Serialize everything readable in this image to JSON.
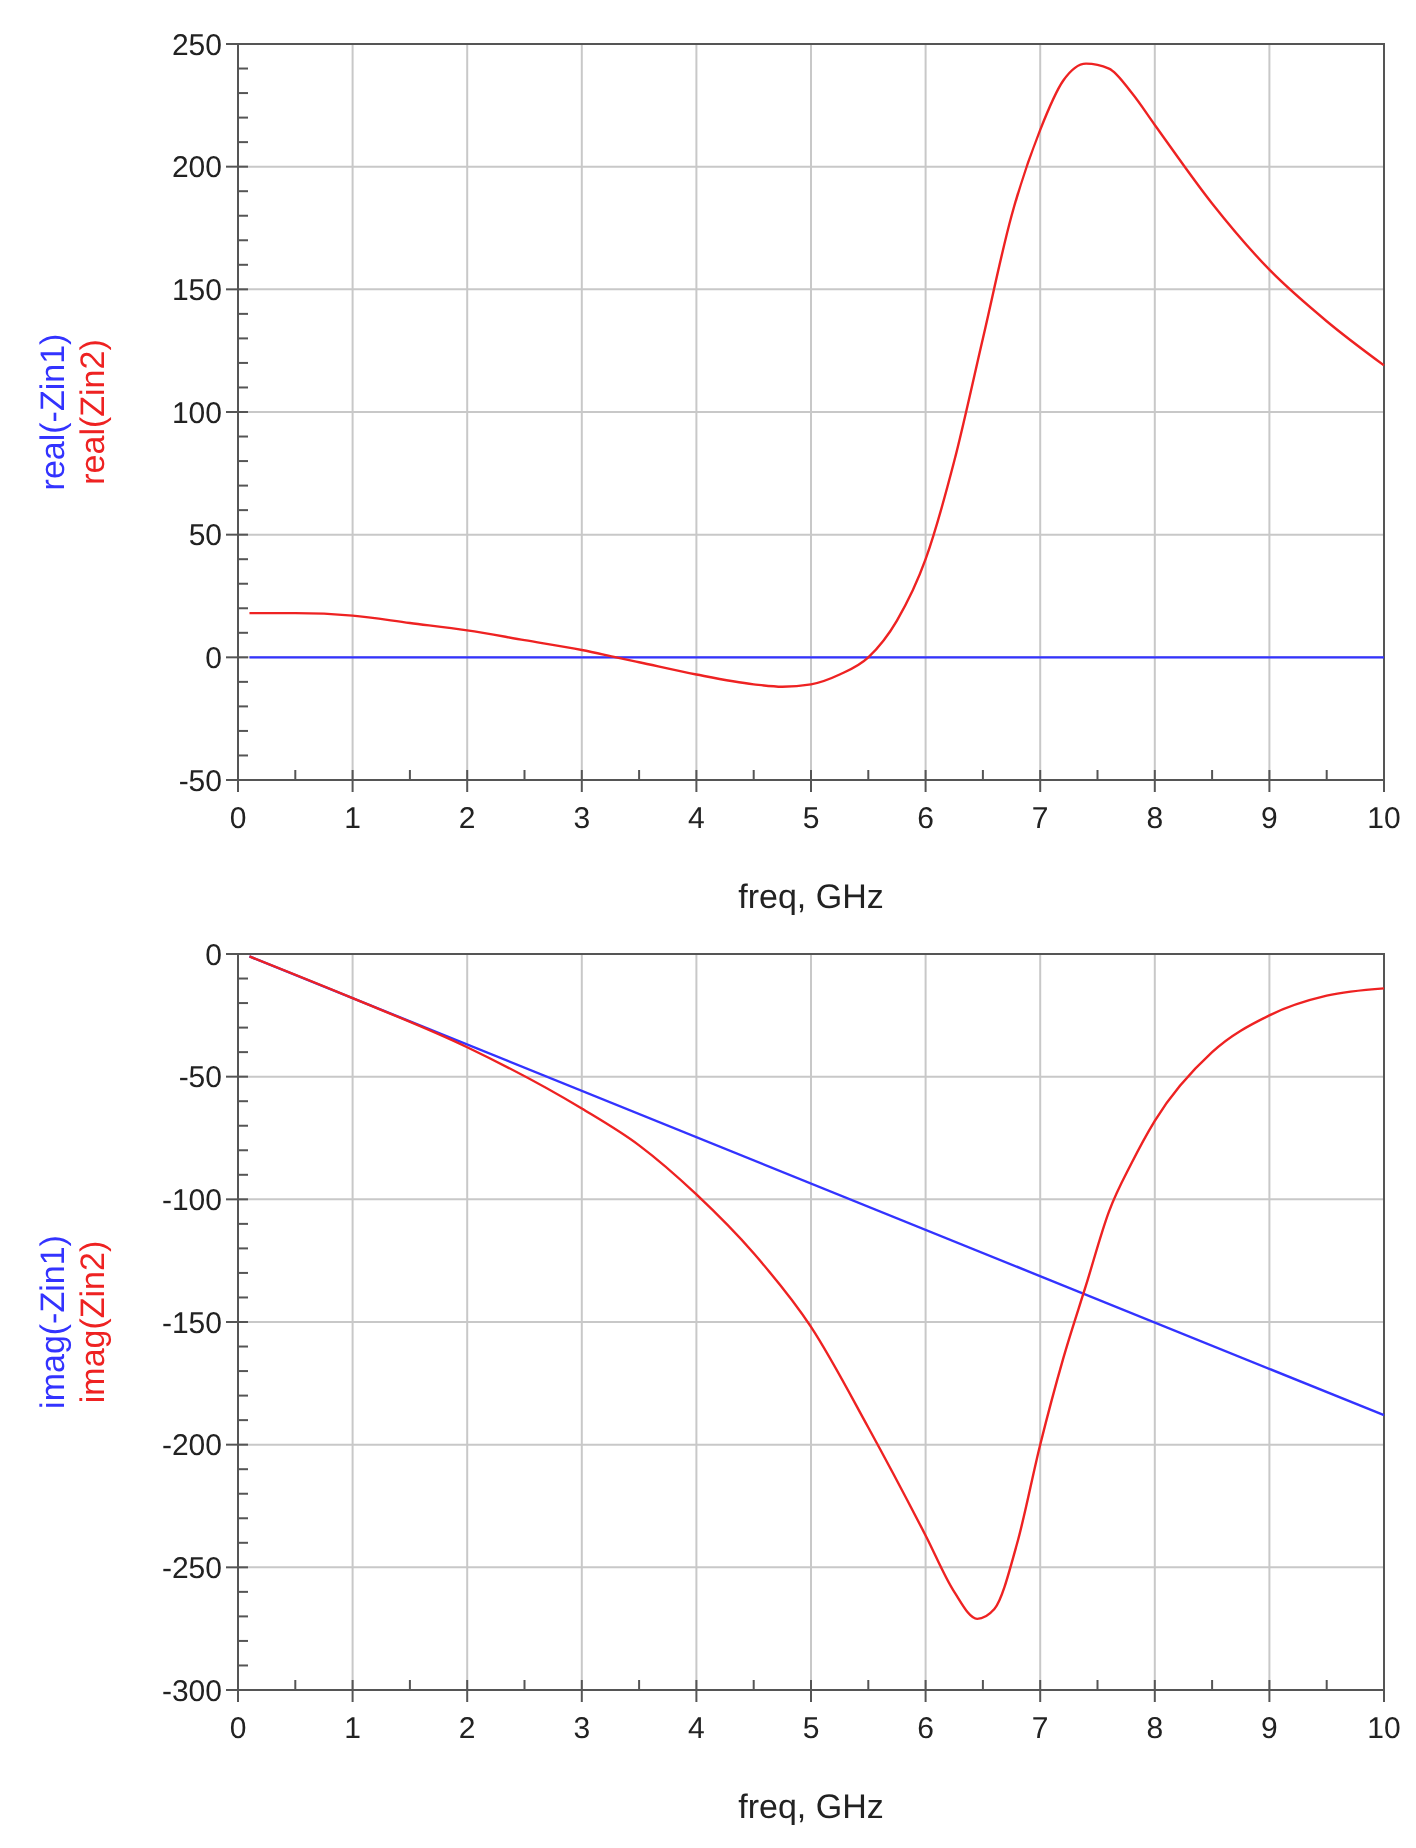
{
  "chart_data": [
    {
      "type": "line",
      "xlabel": "freq, GHz",
      "xlim": [
        0,
        10
      ],
      "xticks": [
        0,
        1,
        2,
        3,
        4,
        5,
        6,
        7,
        8,
        9,
        10
      ],
      "ylim": [
        -50,
        250
      ],
      "yticks": [
        -50,
        0,
        50,
        100,
        150,
        200,
        250
      ],
      "grid": true,
      "series": [
        {
          "name": "real(-Zin1)",
          "color": "#3333ff",
          "x": [
            0.1,
            2,
            4,
            6,
            8,
            10
          ],
          "values": [
            0,
            0,
            0,
            0,
            0,
            0
          ]
        },
        {
          "name": "real(Zin2)",
          "color": "#ee2222",
          "x": [
            0.1,
            0.5,
            1,
            1.5,
            2,
            2.5,
            3,
            3.3,
            3.5,
            4,
            4.5,
            4.75,
            5,
            5.25,
            5.5,
            5.75,
            6,
            6.25,
            6.5,
            6.75,
            7,
            7.2,
            7.4,
            7.6,
            7.8,
            8,
            8.5,
            9,
            9.5,
            10
          ],
          "values": [
            18,
            18,
            17,
            14,
            11,
            7,
            3,
            0,
            -2,
            -7,
            -11,
            -12,
            -11,
            -7,
            0,
            15,
            40,
            80,
            130,
            180,
            215,
            235,
            242,
            240,
            230,
            217,
            185,
            158,
            137,
            119
          ]
        }
      ]
    },
    {
      "type": "line",
      "xlabel": "freq, GHz",
      "xlim": [
        0,
        10
      ],
      "xticks": [
        0,
        1,
        2,
        3,
        4,
        5,
        6,
        7,
        8,
        9,
        10
      ],
      "ylim": [
        -300,
        0
      ],
      "yticks": [
        -300,
        -250,
        -200,
        -150,
        -100,
        -50,
        0
      ],
      "grid": true,
      "series": [
        {
          "name": "imag(-Zin1)",
          "color": "#3333ff",
          "x": [
            0.1,
            10
          ],
          "values": [
            -1,
            -188
          ]
        },
        {
          "name": "imag(Zin2)",
          "color": "#ee2222",
          "x": [
            0.1,
            1,
            2,
            3,
            3.5,
            4,
            4.5,
            5,
            5.5,
            6,
            6.25,
            6.45,
            6.6,
            6.8,
            7,
            7.2,
            7.4,
            7.6,
            7.8,
            8,
            8.5,
            9,
            9.5,
            10
          ],
          "values": [
            -1,
            -18,
            -38,
            -63,
            -78,
            -98,
            -122,
            -152,
            -193,
            -237,
            -260,
            -271,
            -267,
            -240,
            -200,
            -165,
            -135,
            -105,
            -85,
            -68,
            -40,
            -25,
            -17,
            -14
          ]
        }
      ]
    }
  ]
}
